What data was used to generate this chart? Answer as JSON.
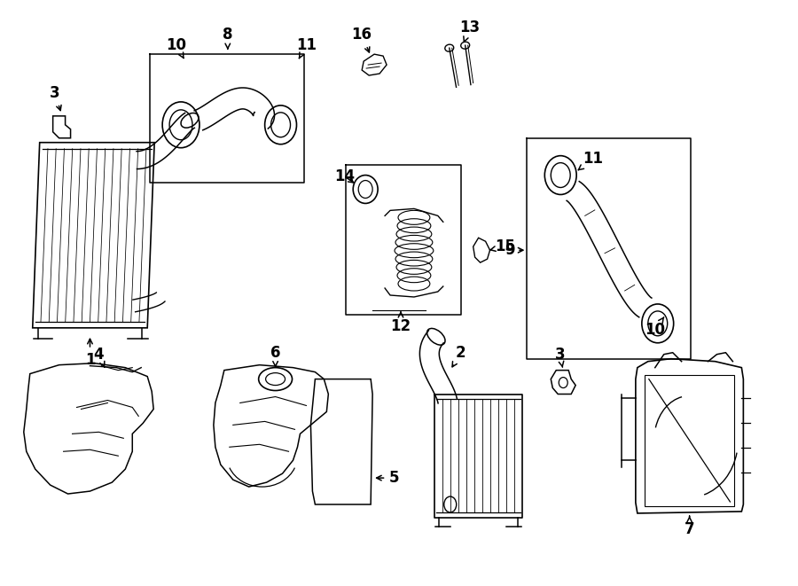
{
  "bg_color": "#ffffff",
  "line_color": "#000000",
  "lw": 1.1,
  "fig_width": 9.0,
  "fig_height": 6.61,
  "dpi": 100,
  "label_fs": 12
}
